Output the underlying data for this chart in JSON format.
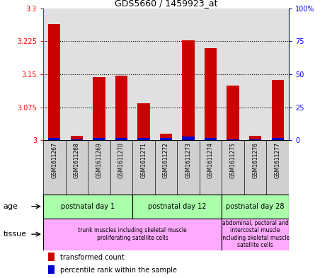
{
  "title": "GDS5660 / 1459923_at",
  "samples": [
    "GSM1611267",
    "GSM1611268",
    "GSM1611269",
    "GSM1611270",
    "GSM1611271",
    "GSM1611272",
    "GSM1611273",
    "GSM1611274",
    "GSM1611275",
    "GSM1611276",
    "GSM1611277"
  ],
  "transformed_count": [
    3.265,
    3.01,
    3.143,
    3.147,
    3.085,
    3.015,
    3.228,
    3.21,
    3.125,
    3.01,
    3.138
  ],
  "percentile_rank": [
    2,
    1,
    2,
    2,
    2,
    2,
    3,
    2,
    1,
    1,
    2
  ],
  "ylim_left": [
    3.0,
    3.3
  ],
  "ylim_right": [
    0,
    100
  ],
  "yticks_left": [
    3.0,
    3.075,
    3.15,
    3.225,
    3.3
  ],
  "yticks_right": [
    0,
    25,
    50,
    75,
    100
  ],
  "ytick_labels_left": [
    "3",
    "3.075",
    "3.15",
    "3.225",
    "3.3"
  ],
  "ytick_labels_right": [
    "0",
    "25",
    "50",
    "75",
    "100%"
  ],
  "bar_color_red": "#cc0000",
  "bar_color_blue": "#0000cc",
  "bg_color": "#e0e0e0",
  "names_bg": "#d0d0d0",
  "age_color": "#aaffaa",
  "tissue_color": "#ffaaff",
  "age_groups": [
    {
      "label": "postnatal day 1",
      "start": 0,
      "end": 4
    },
    {
      "label": "postnatal day 12",
      "start": 4,
      "end": 8
    },
    {
      "label": "postnatal day 28",
      "start": 8,
      "end": 11
    }
  ],
  "tissue_groups": [
    {
      "label": "trunk muscles including skeletal muscle\nproliferating satellite cells",
      "start": 0,
      "end": 8
    },
    {
      "label": "abdominal, pectoral and\nintercostal muscle\nincluding skeletal muscle\nsatellite cells",
      "start": 8,
      "end": 11
    }
  ],
  "legend_red": "transformed count",
  "legend_blue": "percentile rank within the sample"
}
